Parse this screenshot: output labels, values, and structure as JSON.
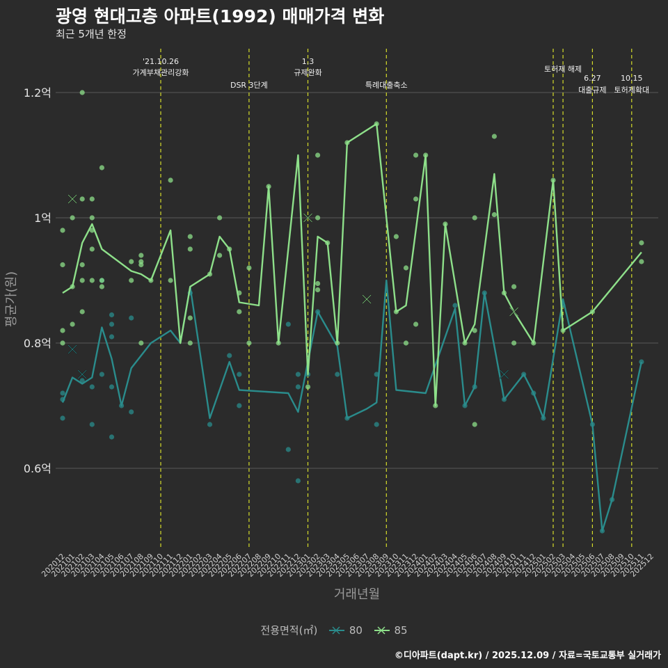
{
  "title": "광영 현대고층 아파트(1992) 매매가격 변화",
  "subtitle": "최근 5개년 한정",
  "caption": "©디아파트(dapt.kr) / 2025.12.09 / 자료=국토교통부 실거래가",
  "colors": {
    "background": "#2b2b2b",
    "grid": "#5a5a5a",
    "s80": "#2a8c8c",
    "s85": "#8ee08a",
    "event": "#d6dd2a"
  },
  "legend": {
    "title": "전용면적(㎡)",
    "items": [
      "80",
      "85"
    ]
  },
  "chart_data": {
    "type": "line",
    "xlabel": "거래년월",
    "ylabel": "평균가(원)",
    "ylim": [
      0.47,
      1.27
    ],
    "yticks": [
      0.6,
      0.8,
      1.0,
      1.2
    ],
    "ytick_labels": [
      "0.6억",
      "0.8억",
      "1억",
      "1.2억"
    ],
    "x_range": [
      "202012",
      "202512"
    ],
    "x_ticks": [
      "202012",
      "202101",
      "202102",
      "202103",
      "202104",
      "202105",
      "202106",
      "202107",
      "202108",
      "202109",
      "202110",
      "202111",
      "202112",
      "202201",
      "202202",
      "202203",
      "202204",
      "202205",
      "202206",
      "202207",
      "202208",
      "202209",
      "202210",
      "202211",
      "202212",
      "202301",
      "202302",
      "202303",
      "202304",
      "202305",
      "202306",
      "202307",
      "202308",
      "202309",
      "202310",
      "202311",
      "202312",
      "202401",
      "202402",
      "202403",
      "202404",
      "202405",
      "202406",
      "202407",
      "202408",
      "202409",
      "202410",
      "202411",
      "202412",
      "202501",
      "202502",
      "202503",
      "202504",
      "202505",
      "202506",
      "202507",
      "202508",
      "202509",
      "202510",
      "202511",
      "202512"
    ],
    "events": [
      {
        "x": "202110",
        "label": "'21.10.26\n가계부채관리강화",
        "level": 0
      },
      {
        "x": "202207",
        "label": "DSR 3단계",
        "level": 1
      },
      {
        "x": "202301",
        "label": "1.3\n규제완화",
        "level": 0
      },
      {
        "x": "202309",
        "label": "특례대출축소",
        "level": 1
      },
      {
        "x": "202502",
        "label": "",
        "level": 0
      },
      {
        "x": "202503",
        "label": "토허제 해제",
        "level": 2
      },
      {
        "x": "202506",
        "label": "6.27\n대출규제",
        "level": 3
      },
      {
        "x": "202510",
        "label": "10.15\n토허제확대",
        "level": 3
      }
    ],
    "series": [
      {
        "name": "80",
        "line": [
          [
            "202012",
            0.705
          ],
          [
            "202101",
            0.745
          ],
          [
            "202102",
            0.735
          ],
          [
            "202103",
            0.745
          ],
          [
            "202104",
            0.825
          ],
          [
            "202105",
            0.775
          ],
          [
            "202106",
            0.7
          ],
          [
            "202107",
            0.76
          ],
          [
            "202109",
            0.8
          ],
          [
            "202111",
            0.82
          ],
          [
            "202112",
            0.8
          ],
          [
            "202201",
            0.89
          ],
          [
            "202203",
            0.68
          ],
          [
            "202205",
            0.77
          ],
          [
            "202206",
            0.725
          ],
          [
            "202211",
            0.72
          ],
          [
            "202212",
            0.69
          ],
          [
            "202302",
            0.85
          ],
          [
            "202304",
            0.795
          ],
          [
            "202305",
            0.68
          ],
          [
            "202307",
            0.695
          ],
          [
            "202308",
            0.705
          ],
          [
            "202309",
            0.9
          ],
          [
            "202310",
            0.725
          ],
          [
            "202401",
            0.72
          ],
          [
            "202404",
            0.855
          ],
          [
            "202405",
            0.7
          ],
          [
            "202406",
            0.73
          ],
          [
            "202407",
            0.88
          ],
          [
            "202409",
            0.71
          ],
          [
            "202411",
            0.75
          ],
          [
            "202412",
            0.72
          ],
          [
            "202501",
            0.68
          ],
          [
            "202503",
            0.87
          ],
          [
            "202506",
            0.67
          ],
          [
            "202507",
            0.5
          ],
          [
            "202508",
            0.55
          ],
          [
            "202511",
            0.77
          ]
        ],
        "points": [
          [
            "202012",
            0.72
          ],
          [
            "202012",
            0.71
          ],
          [
            "202012",
            0.68
          ],
          [
            "202102",
            0.74
          ],
          [
            "202103",
            0.67
          ],
          [
            "202103",
            0.73
          ],
          [
            "202104",
            0.9
          ],
          [
            "202104",
            0.75
          ],
          [
            "202105",
            0.65
          ],
          [
            "202105",
            0.73
          ],
          [
            "202105",
            0.845
          ],
          [
            "202105",
            0.81
          ],
          [
            "202105",
            0.83
          ],
          [
            "202106",
            0.7
          ],
          [
            "202107",
            0.69
          ],
          [
            "202107",
            0.84
          ],
          [
            "202201",
            0.88
          ],
          [
            "202203",
            0.67
          ],
          [
            "202205",
            0.78
          ],
          [
            "202206",
            0.7
          ],
          [
            "202206",
            0.75
          ],
          [
            "202211",
            0.63
          ],
          [
            "202211",
            0.83
          ],
          [
            "202212",
            0.58
          ],
          [
            "202212",
            0.73
          ],
          [
            "202212",
            0.75
          ],
          [
            "202301",
            0.75
          ],
          [
            "202302",
            0.85
          ],
          [
            "202304",
            0.75
          ],
          [
            "202305",
            0.68
          ],
          [
            "202308",
            0.67
          ],
          [
            "202308",
            0.75
          ],
          [
            "202404",
            0.86
          ],
          [
            "202405",
            0.7
          ],
          [
            "202406",
            0.73
          ],
          [
            "202407",
            0.88
          ],
          [
            "202409",
            0.71
          ],
          [
            "202411",
            0.75
          ],
          [
            "202412",
            0.72
          ],
          [
            "202501",
            0.68
          ],
          [
            "202503",
            0.86
          ],
          [
            "202506",
            0.67
          ],
          [
            "202507",
            0.5
          ],
          [
            "202508",
            0.55
          ],
          [
            "202511",
            0.77
          ]
        ],
        "crosses": [
          [
            "202101",
            0.79
          ],
          [
            "202102",
            0.75
          ],
          [
            "202409",
            0.75
          ]
        ]
      },
      {
        "name": "85",
        "line": [
          [
            "202012",
            0.88
          ],
          [
            "202101",
            0.89
          ],
          [
            "202102",
            0.96
          ],
          [
            "202103",
            0.99
          ],
          [
            "202104",
            0.95
          ],
          [
            "202107",
            0.915
          ],
          [
            "202108",
            0.91
          ],
          [
            "202109",
            0.9
          ],
          [
            "202111",
            0.98
          ],
          [
            "202112",
            0.8
          ],
          [
            "202201",
            0.89
          ],
          [
            "202203",
            0.91
          ],
          [
            "202204",
            0.97
          ],
          [
            "202205",
            0.95
          ],
          [
            "202206",
            0.865
          ],
          [
            "202208",
            0.86
          ],
          [
            "202209",
            1.05
          ],
          [
            "202210",
            0.8
          ],
          [
            "202212",
            1.1
          ],
          [
            "202301",
            0.75
          ],
          [
            "202302",
            0.97
          ],
          [
            "202303",
            0.96
          ],
          [
            "202304",
            0.8
          ],
          [
            "202305",
            1.12
          ],
          [
            "202308",
            1.15
          ],
          [
            "202310",
            0.85
          ],
          [
            "202311",
            0.86
          ],
          [
            "202401",
            1.1
          ],
          [
            "202402",
            0.7
          ],
          [
            "202403",
            0.99
          ],
          [
            "202405",
            0.8
          ],
          [
            "202406",
            0.83
          ],
          [
            "202408",
            1.07
          ],
          [
            "202409",
            0.88
          ],
          [
            "202410",
            0.85
          ],
          [
            "202412",
            0.8
          ],
          [
            "202502",
            1.06
          ],
          [
            "202503",
            0.82
          ],
          [
            "202506",
            0.85
          ],
          [
            "202511",
            0.945
          ]
        ],
        "points": [
          [
            "202012",
            0.98
          ],
          [
            "202012",
            0.925
          ],
          [
            "202012",
            0.82
          ],
          [
            "202012",
            0.8
          ],
          [
            "202101",
            0.83
          ],
          [
            "202101",
            0.89
          ],
          [
            "202101",
            1.0
          ],
          [
            "202102",
            1.2
          ],
          [
            "202102",
            1.03
          ],
          [
            "202102",
            0.925
          ],
          [
            "202102",
            0.9
          ],
          [
            "202102",
            0.85
          ],
          [
            "202103",
            1.03
          ],
          [
            "202103",
            1.0
          ],
          [
            "202103",
            0.98
          ],
          [
            "202103",
            0.95
          ],
          [
            "202103",
            0.9
          ],
          [
            "202104",
            1.08
          ],
          [
            "202104",
            0.9
          ],
          [
            "202104",
            0.89
          ],
          [
            "202107",
            0.93
          ],
          [
            "202107",
            0.9
          ],
          [
            "202108",
            0.94
          ],
          [
            "202108",
            0.93
          ],
          [
            "202108",
            0.925
          ],
          [
            "202108",
            0.8
          ],
          [
            "202109",
            0.9
          ],
          [
            "202111",
            1.06
          ],
          [
            "202111",
            0.9
          ],
          [
            "202201",
            0.97
          ],
          [
            "202201",
            0.95
          ],
          [
            "202201",
            0.84
          ],
          [
            "202201",
            0.8
          ],
          [
            "202203",
            0.91
          ],
          [
            "202204",
            1.0
          ],
          [
            "202204",
            0.94
          ],
          [
            "202205",
            0.95
          ],
          [
            "202206",
            0.85
          ],
          [
            "202206",
            0.88
          ],
          [
            "202207",
            0.92
          ],
          [
            "202207",
            0.8
          ],
          [
            "202209",
            1.05
          ],
          [
            "202210",
            0.8
          ],
          [
            "202301",
            0.73
          ],
          [
            "202302",
            1.1
          ],
          [
            "202302",
            1.0
          ],
          [
            "202302",
            0.895
          ],
          [
            "202302",
            0.885
          ],
          [
            "202303",
            0.96
          ],
          [
            "202304",
            0.8
          ],
          [
            "202305",
            1.12
          ],
          [
            "202308",
            1.15
          ],
          [
            "202310",
            0.97
          ],
          [
            "202310",
            0.85
          ],
          [
            "202311",
            0.92
          ],
          [
            "202311",
            0.8
          ],
          [
            "202312",
            1.1
          ],
          [
            "202312",
            1.03
          ],
          [
            "202312",
            0.83
          ],
          [
            "202401",
            1.1
          ],
          [
            "202402",
            0.7
          ],
          [
            "202403",
            0.99
          ],
          [
            "202405",
            0.8
          ],
          [
            "202406",
            1.0
          ],
          [
            "202406",
            0.82
          ],
          [
            "202406",
            0.67
          ],
          [
            "202408",
            1.13
          ],
          [
            "202408",
            1.005
          ],
          [
            "202409",
            0.88
          ],
          [
            "202410",
            0.89
          ],
          [
            "202410",
            0.8
          ],
          [
            "202412",
            0.8
          ],
          [
            "202502",
            1.06
          ],
          [
            "202503",
            0.82
          ],
          [
            "202506",
            0.85
          ],
          [
            "202511",
            0.96
          ],
          [
            "202511",
            0.93
          ]
        ],
        "crosses": [
          [
            "202101",
            1.03
          ],
          [
            "202301",
            1.0
          ],
          [
            "202307",
            0.87
          ],
          [
            "202410",
            0.85
          ]
        ]
      }
    ]
  }
}
